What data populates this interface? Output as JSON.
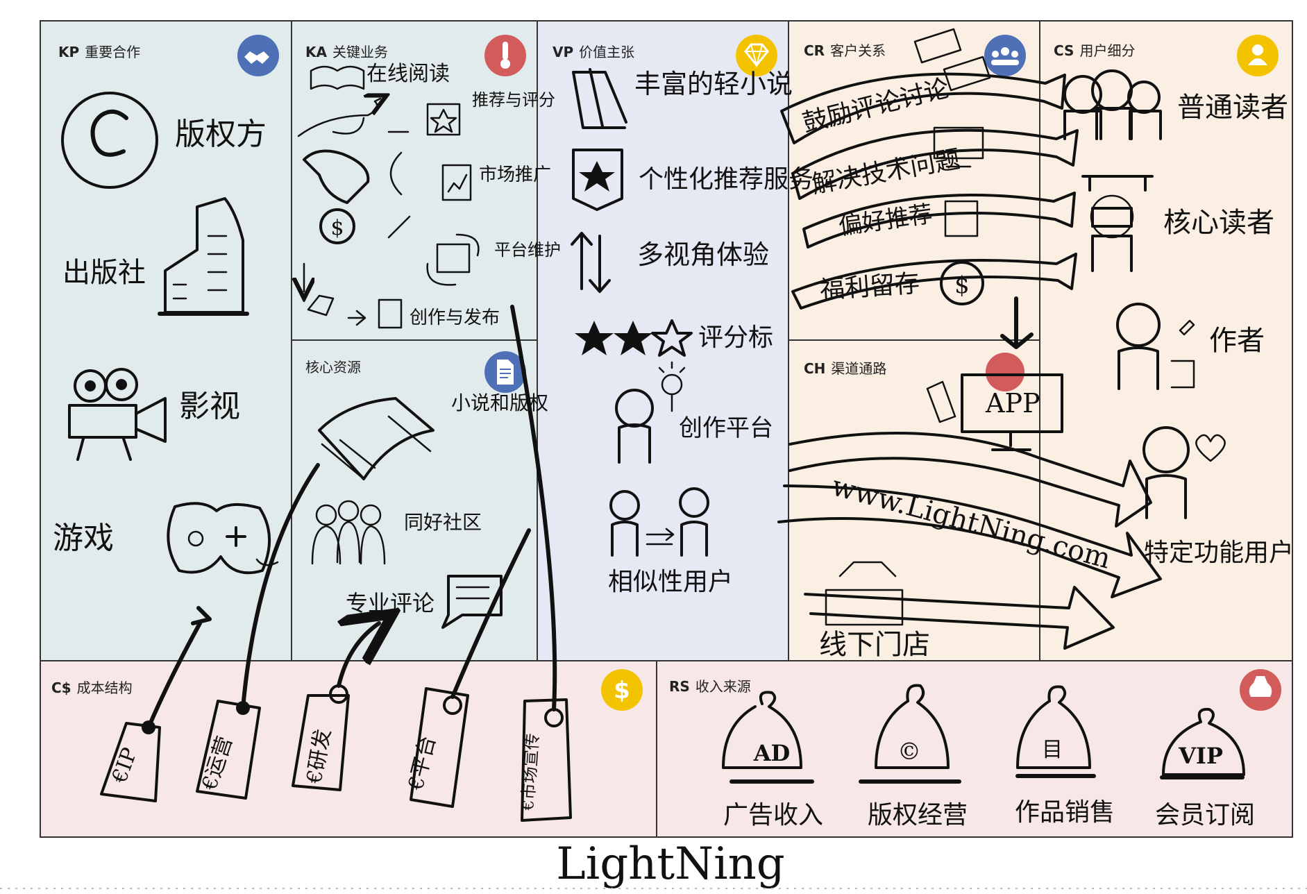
{
  "colors": {
    "kp_bg": "#e2ebeb",
    "ka_bg": "#e2ebeb",
    "kr_bg": "#e2ebeb",
    "vp_bg": "#e6e9f4",
    "cr_bg": "#fbefe3",
    "ch_bg": "#fbefe3",
    "cs_bg": "#fbefe3",
    "cost_bg": "#f7e7e7",
    "rev_bg": "#f7e7e7",
    "icon_blue": "#4f6fb6",
    "icon_red": "#d25c5c",
    "icon_yellow": "#f3c300",
    "border": "#333333"
  },
  "cells": {
    "kp": {
      "tag": "KP",
      "title": "重要合作",
      "icon": "handshake-icon",
      "items": [
        "版权方",
        "出版社",
        "影视",
        "游戏"
      ]
    },
    "ka": {
      "tag": "KA",
      "title": "关键业务",
      "icon": "thermometer-icon",
      "items": [
        "在线阅读",
        "推荐与评分",
        "市场推广",
        "平台维护",
        "创作与发布"
      ]
    },
    "kr": {
      "tag": "",
      "title": "核心资源",
      "icon": "document-icon",
      "items": [
        "小说和版权",
        "同好社区",
        "专业评论"
      ]
    },
    "vp": {
      "tag": "VP",
      "title": "价值主张",
      "icon": "diamond-icon",
      "items": [
        "丰富的轻小说",
        "个性化推荐服务",
        "多视角体验",
        "评分标",
        "创作平台",
        "相似性用户"
      ]
    },
    "cr": {
      "tag": "CR",
      "title": "客户关系",
      "icon": "group-icon",
      "items": [
        "鼓励评论讨论",
        "解决技术问题",
        "偏好推荐",
        "福利留存"
      ]
    },
    "ch": {
      "tag": "CH",
      "title": "渠道通路",
      "icon": "share-icon",
      "items": [
        "APP",
        "www.LightNing.com",
        "线下门店"
      ]
    },
    "cs": {
      "tag": "CS",
      "title": "用户细分",
      "icon": "user-icon",
      "items": [
        "普通读者",
        "核心读者",
        "作者",
        "特定功能用户"
      ]
    },
    "cost": {
      "tag": "C$",
      "title": "成本结构",
      "icon": "dollar-icon",
      "items": [
        "€IP",
        "€运营",
        "€研发",
        "€平台",
        "€市场宣传"
      ]
    },
    "rev": {
      "tag": "RS",
      "title": "收入来源",
      "icon": "moneybag-icon",
      "items": [
        "广告收入",
        "版权经营",
        "作品销售",
        "会员订阅"
      ],
      "bag_marks": [
        "AD",
        "©",
        "目",
        "VIP"
      ]
    }
  },
  "footer": {
    "logo": "LightNing"
  }
}
